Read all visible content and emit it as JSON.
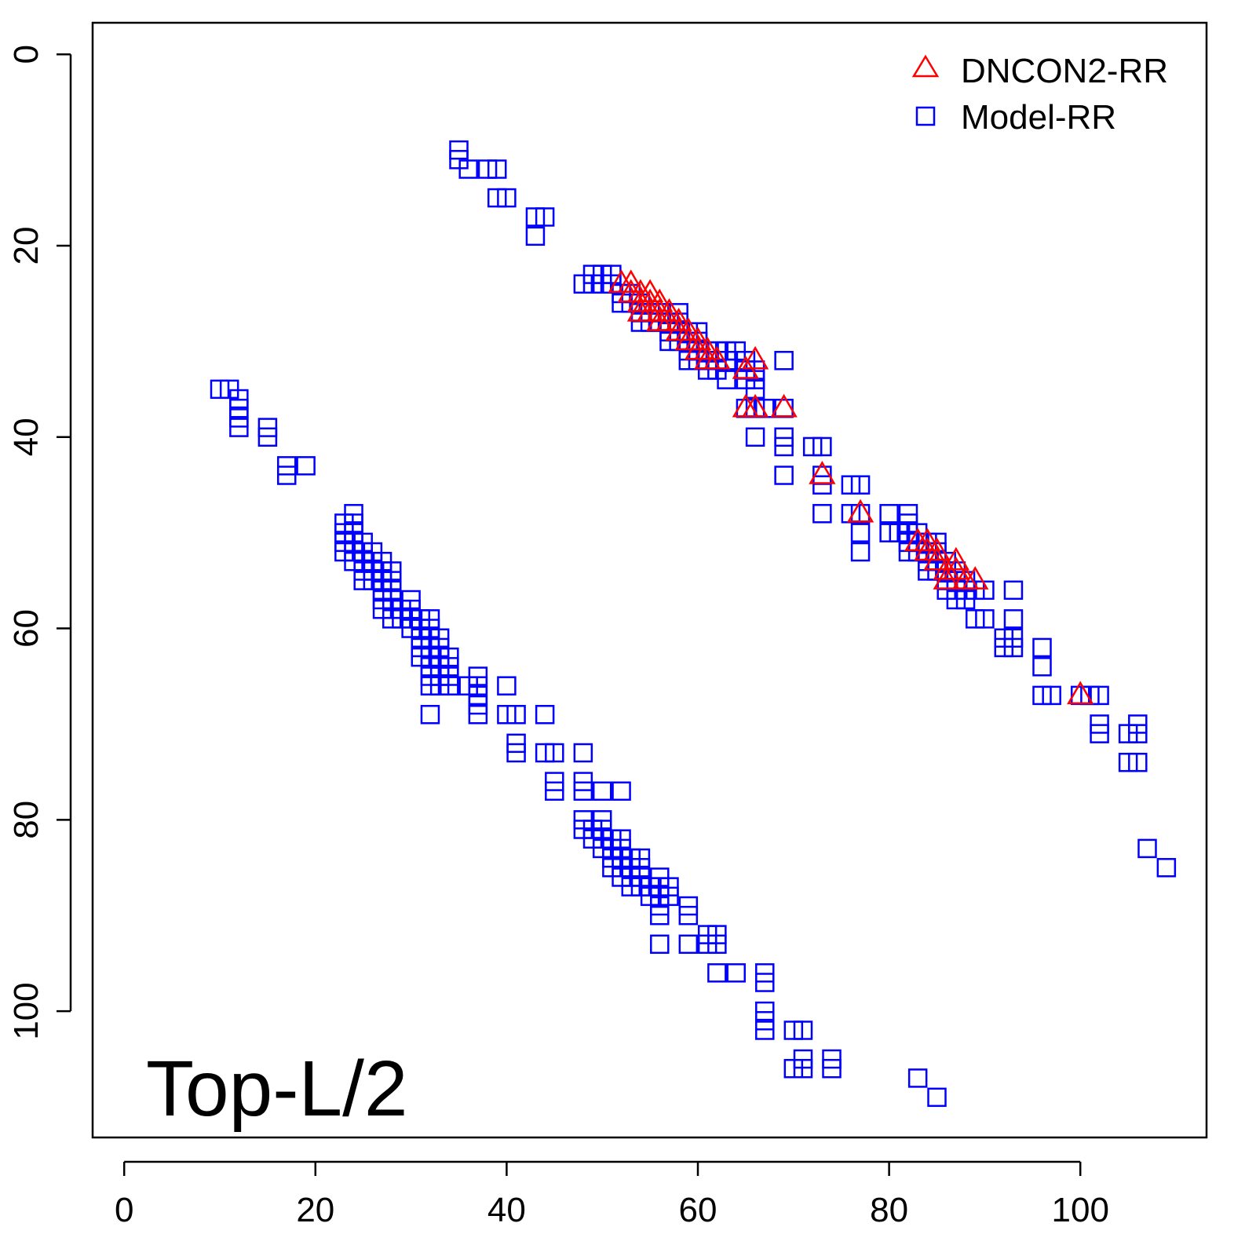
{
  "chart_data": {
    "type": "scatter",
    "title": "",
    "xlabel": "",
    "ylabel": "",
    "xlim": [
      -3.3,
      113.2
    ],
    "ylim": [
      -3.3,
      113.2
    ],
    "y_reversed": true,
    "grid": false,
    "legend_position": "top-right",
    "x_ticks": [
      "0",
      "20",
      "40",
      "60",
      "80",
      "100"
    ],
    "y_ticks": [
      "0",
      "20",
      "40",
      "60",
      "80",
      "100"
    ],
    "annotation": "Top-L/2",
    "series": [
      {
        "name": "Model-RR",
        "marker": "square",
        "color": "#0000ff",
        "points": [
          [
            10,
            35
          ],
          [
            11,
            35
          ],
          [
            12,
            36
          ],
          [
            12,
            37
          ],
          [
            12,
            38
          ],
          [
            12,
            39
          ],
          [
            15,
            39
          ],
          [
            15,
            40
          ],
          [
            17,
            43
          ],
          [
            17,
            44
          ],
          [
            19,
            43
          ],
          [
            23,
            49
          ],
          [
            23,
            50
          ],
          [
            23,
            51
          ],
          [
            23,
            52
          ],
          [
            24,
            48
          ],
          [
            24,
            49
          ],
          [
            24,
            50
          ],
          [
            24,
            51
          ],
          [
            24,
            52
          ],
          [
            24,
            53
          ],
          [
            25,
            51
          ],
          [
            25,
            52
          ],
          [
            25,
            53
          ],
          [
            25,
            54
          ],
          [
            25,
            55
          ],
          [
            26,
            52
          ],
          [
            26,
            53
          ],
          [
            26,
            54
          ],
          [
            26,
            55
          ],
          [
            27,
            53
          ],
          [
            27,
            54
          ],
          [
            27,
            55
          ],
          [
            27,
            56
          ],
          [
            27,
            57
          ],
          [
            27,
            58
          ],
          [
            28,
            54
          ],
          [
            28,
            55
          ],
          [
            28,
            56
          ],
          [
            28,
            57
          ],
          [
            28,
            58
          ],
          [
            28,
            59
          ],
          [
            29,
            58
          ],
          [
            29,
            59
          ],
          [
            30,
            57
          ],
          [
            30,
            58
          ],
          [
            30,
            59
          ],
          [
            30,
            60
          ],
          [
            31,
            59
          ],
          [
            31,
            60
          ],
          [
            31,
            61
          ],
          [
            31,
            62
          ],
          [
            31,
            63
          ],
          [
            32,
            59
          ],
          [
            32,
            60
          ],
          [
            32,
            61
          ],
          [
            32,
            62
          ],
          [
            32,
            63
          ],
          [
            32,
            64
          ],
          [
            32,
            65
          ],
          [
            32,
            66
          ],
          [
            32,
            69
          ],
          [
            33,
            61
          ],
          [
            33,
            62
          ],
          [
            33,
            63
          ],
          [
            33,
            64
          ],
          [
            33,
            65
          ],
          [
            33,
            66
          ],
          [
            34,
            63
          ],
          [
            34,
            64
          ],
          [
            34,
            65
          ],
          [
            34,
            66
          ],
          [
            36,
            66
          ],
          [
            37,
            65
          ],
          [
            37,
            66
          ],
          [
            37,
            67
          ],
          [
            37,
            68
          ],
          [
            37,
            69
          ],
          [
            40,
            66
          ],
          [
            40,
            69
          ],
          [
            41,
            69
          ],
          [
            41,
            72
          ],
          [
            41,
            73
          ],
          [
            44,
            69
          ],
          [
            44,
            73
          ],
          [
            45,
            73
          ],
          [
            45,
            76
          ],
          [
            45,
            77
          ],
          [
            48,
            73
          ],
          [
            48,
            76
          ],
          [
            48,
            77
          ],
          [
            48,
            80
          ],
          [
            48,
            81
          ],
          [
            49,
            81
          ],
          [
            49,
            82
          ],
          [
            50,
            77
          ],
          [
            50,
            80
          ],
          [
            50,
            81
          ],
          [
            50,
            82
          ],
          [
            50,
            83
          ],
          [
            51,
            82
          ],
          [
            51,
            83
          ],
          [
            51,
            84
          ],
          [
            51,
            85
          ],
          [
            52,
            77
          ],
          [
            52,
            82
          ],
          [
            52,
            83
          ],
          [
            52,
            84
          ],
          [
            52,
            85
          ],
          [
            52,
            86
          ],
          [
            53,
            84
          ],
          [
            53,
            85
          ],
          [
            53,
            86
          ],
          [
            53,
            87
          ],
          [
            54,
            84
          ],
          [
            54,
            85
          ],
          [
            54,
            86
          ],
          [
            54,
            87
          ],
          [
            55,
            87
          ],
          [
            55,
            88
          ],
          [
            56,
            86
          ],
          [
            56,
            87
          ],
          [
            56,
            88
          ],
          [
            56,
            89
          ],
          [
            56,
            90
          ],
          [
            56,
            93
          ],
          [
            57,
            87
          ],
          [
            57,
            88
          ],
          [
            59,
            89
          ],
          [
            59,
            90
          ],
          [
            59,
            93
          ],
          [
            61,
            92
          ],
          [
            61,
            93
          ],
          [
            62,
            92
          ],
          [
            62,
            93
          ],
          [
            62,
            96
          ],
          [
            64,
            96
          ],
          [
            67,
            96
          ],
          [
            67,
            97
          ],
          [
            67,
            100
          ],
          [
            67,
            101
          ],
          [
            67,
            102
          ],
          [
            70,
            102
          ],
          [
            70,
            106
          ],
          [
            71,
            102
          ],
          [
            71,
            105
          ],
          [
            71,
            106
          ],
          [
            74,
            105
          ],
          [
            74,
            106
          ],
          [
            83,
            107
          ],
          [
            85,
            109
          ],
          [
            35,
            10
          ],
          [
            35,
            11
          ],
          [
            36,
            12
          ],
          [
            38,
            12
          ],
          [
            39,
            12
          ],
          [
            39,
            15
          ],
          [
            40,
            15
          ],
          [
            43,
            17
          ],
          [
            43,
            19
          ],
          [
            44,
            17
          ],
          [
            48,
            24
          ],
          [
            49,
            23
          ],
          [
            49,
            24
          ],
          [
            50,
            23
          ],
          [
            50,
            24
          ],
          [
            51,
            23
          ],
          [
            51,
            24
          ],
          [
            52,
            25
          ],
          [
            52,
            26
          ],
          [
            53,
            25
          ],
          [
            53,
            26
          ],
          [
            54,
            26
          ],
          [
            54,
            27
          ],
          [
            54,
            28
          ],
          [
            55,
            27
          ],
          [
            55,
            28
          ],
          [
            56,
            27
          ],
          [
            56,
            28
          ],
          [
            57,
            28
          ],
          [
            57,
            29
          ],
          [
            57,
            30
          ],
          [
            58,
            27
          ],
          [
            58,
            28
          ],
          [
            58,
            29
          ],
          [
            58,
            30
          ],
          [
            59,
            29
          ],
          [
            59,
            30
          ],
          [
            59,
            31
          ],
          [
            59,
            32
          ],
          [
            60,
            29
          ],
          [
            60,
            30
          ],
          [
            60,
            31
          ],
          [
            60,
            32
          ],
          [
            61,
            31
          ],
          [
            61,
            32
          ],
          [
            61,
            33
          ],
          [
            62,
            31
          ],
          [
            62,
            32
          ],
          [
            62,
            33
          ],
          [
            63,
            31
          ],
          [
            63,
            32
          ],
          [
            63,
            34
          ],
          [
            64,
            31
          ],
          [
            65,
            32
          ],
          [
            65,
            33
          ],
          [
            65,
            34
          ],
          [
            65,
            37
          ],
          [
            66,
            33
          ],
          [
            66,
            34
          ],
          [
            66,
            35
          ],
          [
            66,
            37
          ],
          [
            66,
            40
          ],
          [
            67,
            37
          ],
          [
            69,
            32
          ],
          [
            69,
            37
          ],
          [
            69,
            40
          ],
          [
            69,
            41
          ],
          [
            69,
            44
          ],
          [
            72,
            41
          ],
          [
            73,
            41
          ],
          [
            73,
            44
          ],
          [
            73,
            45
          ],
          [
            73,
            48
          ],
          [
            76,
            45
          ],
          [
            76,
            48
          ],
          [
            77,
            45
          ],
          [
            77,
            48
          ],
          [
            77,
            50
          ],
          [
            77,
            52
          ],
          [
            80,
            48
          ],
          [
            80,
            50
          ],
          [
            81,
            50
          ],
          [
            82,
            48
          ],
          [
            82,
            49
          ],
          [
            82,
            50
          ],
          [
            82,
            51
          ],
          [
            82,
            52
          ],
          [
            83,
            50
          ],
          [
            83,
            51
          ],
          [
            83,
            52
          ],
          [
            84,
            51
          ],
          [
            84,
            52
          ],
          [
            84,
            53
          ],
          [
            84,
            54
          ],
          [
            85,
            51
          ],
          [
            85,
            52
          ],
          [
            85,
            53
          ],
          [
            85,
            54
          ],
          [
            86,
            53
          ],
          [
            86,
            54
          ],
          [
            86,
            55
          ],
          [
            86,
            56
          ],
          [
            87,
            54
          ],
          [
            87,
            55
          ],
          [
            87,
            56
          ],
          [
            87,
            57
          ],
          [
            88,
            55
          ],
          [
            88,
            56
          ],
          [
            88,
            57
          ],
          [
            89,
            56
          ],
          [
            89,
            59
          ],
          [
            90,
            56
          ],
          [
            90,
            59
          ],
          [
            92,
            61
          ],
          [
            92,
            62
          ],
          [
            93,
            56
          ],
          [
            93,
            59
          ],
          [
            93,
            61
          ],
          [
            93,
            62
          ],
          [
            96,
            62
          ],
          [
            96,
            64
          ],
          [
            96,
            67
          ],
          [
            97,
            67
          ],
          [
            100,
            67
          ],
          [
            101,
            67
          ],
          [
            102,
            67
          ],
          [
            102,
            70
          ],
          [
            102,
            71
          ],
          [
            105,
            71
          ],
          [
            105,
            74
          ],
          [
            106,
            70
          ],
          [
            106,
            71
          ],
          [
            106,
            74
          ],
          [
            107,
            83
          ],
          [
            109,
            85
          ]
        ]
      },
      {
        "name": "DNCON2-RR",
        "marker": "triangle",
        "color": "#ff0000",
        "points": [
          [
            52,
            24
          ],
          [
            53,
            24
          ],
          [
            53,
            25
          ],
          [
            54,
            25
          ],
          [
            54,
            26
          ],
          [
            55,
            25
          ],
          [
            55,
            26
          ],
          [
            54,
            27
          ],
          [
            55,
            27
          ],
          [
            56,
            26
          ],
          [
            56,
            27
          ],
          [
            56,
            28
          ],
          [
            57,
            27
          ],
          [
            57,
            28
          ],
          [
            58,
            28
          ],
          [
            58,
            29
          ],
          [
            59,
            29
          ],
          [
            59,
            30
          ],
          [
            60,
            30
          ],
          [
            60,
            31
          ],
          [
            61,
            31
          ],
          [
            61,
            32
          ],
          [
            62,
            32
          ],
          [
            65,
            33
          ],
          [
            66,
            32
          ],
          [
            65,
            37
          ],
          [
            66,
            37
          ],
          [
            69,
            37
          ],
          [
            73,
            44
          ],
          [
            77,
            48
          ],
          [
            83,
            51
          ],
          [
            84,
            51
          ],
          [
            84,
            52
          ],
          [
            85,
            52
          ],
          [
            85,
            53
          ],
          [
            86,
            54
          ],
          [
            86,
            55
          ],
          [
            87,
            53
          ],
          [
            87,
            54
          ],
          [
            88,
            55
          ],
          [
            89,
            55
          ],
          [
            100,
            67
          ]
        ]
      }
    ]
  }
}
